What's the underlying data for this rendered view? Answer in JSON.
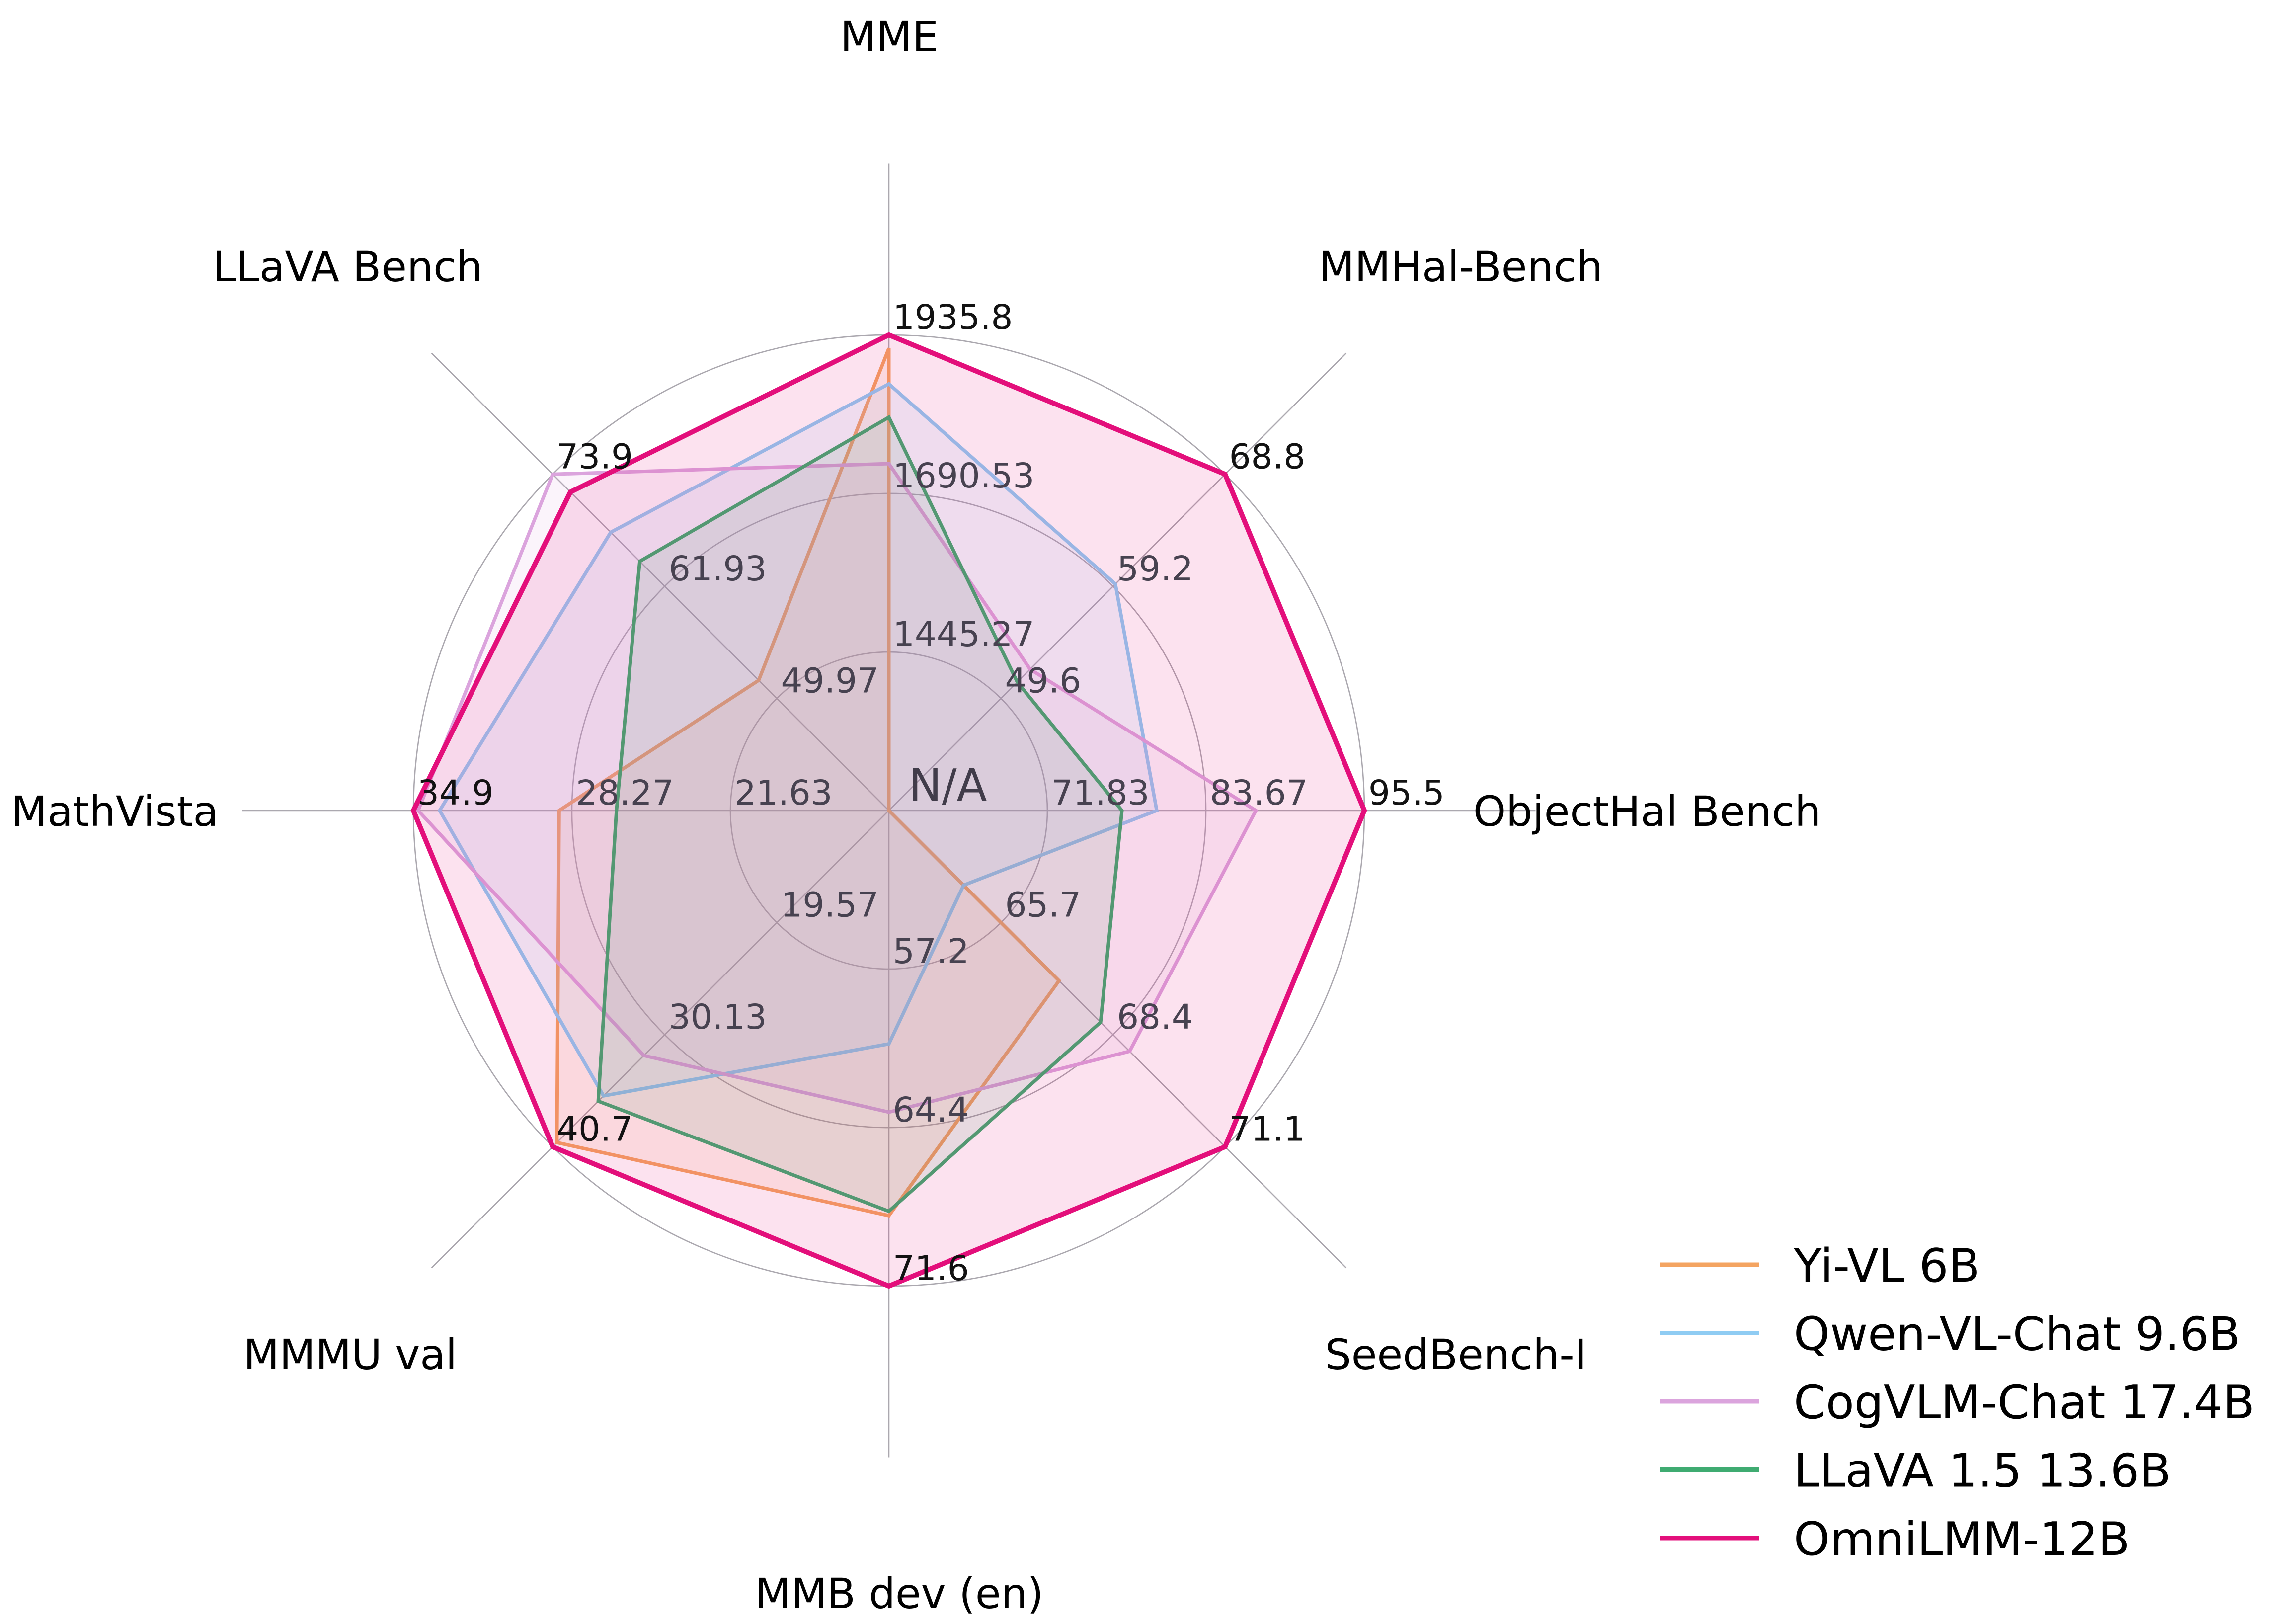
{
  "chart_data": {
    "type": "radar",
    "title": "",
    "center_label": "N/A",
    "background": "#ffffff",
    "grid": {
      "rings": 3,
      "ring_fractions": [
        0.3333,
        0.6667,
        1.0
      ],
      "color": "#ABA8AF",
      "show": true
    },
    "axes": [
      {
        "label": "MME",
        "angle_deg": 90,
        "min": 1200.0,
        "max": 1935.8,
        "ticks": [
          "1445.27",
          "1690.53",
          "1935.8"
        ]
      },
      {
        "label": "MMHal-Bench",
        "angle_deg": 45,
        "min": 40.0,
        "max": 68.8,
        "ticks": [
          "49.6",
          "59.2",
          "68.8"
        ]
      },
      {
        "label": "ObjectHal Bench",
        "angle_deg": 0,
        "min": 60.0,
        "max": 95.5,
        "ticks": [
          "71.83",
          "83.67",
          "95.5"
        ]
      },
      {
        "label": "SeedBench-I",
        "angle_deg": -45,
        "min": 63.0,
        "max": 71.1,
        "ticks": [
          "65.7",
          "68.4",
          "71.1"
        ]
      },
      {
        "label": "MMB dev (en)",
        "angle_deg": -90,
        "min": 50.0,
        "max": 71.6,
        "ticks": [
          "57.2",
          "64.4",
          "71.6"
        ]
      },
      {
        "label": "MMMU val",
        "angle_deg": -135,
        "min": 9.0,
        "max": 40.7,
        "ticks": [
          "19.57",
          "30.13",
          "40.7"
        ]
      },
      {
        "label": "MathVista",
        "angle_deg": 180,
        "min": 15.0,
        "max": 34.9,
        "ticks": [
          "21.63",
          "28.27",
          "34.9"
        ]
      },
      {
        "label": "LLaVA Bench",
        "angle_deg": 135,
        "min": 38.0,
        "max": 73.9,
        "ticks": [
          "49.97",
          "61.93",
          "73.9"
        ]
      }
    ],
    "series": [
      {
        "name": "Yi-VL 6B",
        "color": "#F4A461",
        "line_width": 7,
        "values": [
          1915.1,
          null,
          null,
          67.1,
          68.4,
          40.3,
          28.8,
          51.9
        ]
      },
      {
        "name": "Qwen-VL-Chat 9.6B",
        "color": "#8FCCF3",
        "line_width": 7,
        "values": [
          1860.0,
          59.4,
          80.0,
          64.8,
          60.6,
          35.9,
          33.8,
          67.7
        ]
      },
      {
        "name": "CogVLM-Chat 17.4B",
        "color": "#DBA4DD",
        "line_width": 7,
        "values": [
          1736.6,
          52.1,
          87.4,
          68.8,
          63.7,
          32.1,
          34.7,
          73.9
        ]
      },
      {
        "name": "LLaVA 1.5 13.6B",
        "color": "#3FAB71",
        "line_width": 7,
        "values": [
          1808.4,
          51.0,
          77.4,
          68.1,
          68.2,
          36.4,
          26.4,
          64.6
        ]
      },
      {
        "name": "OmniLMM-12B",
        "color": "#E30F7B",
        "line_width": 10,
        "values": [
          1935.8,
          68.8,
          95.5,
          71.1,
          71.6,
          40.7,
          34.9,
          72.0
        ]
      }
    ],
    "fill_opacity": 0.12,
    "na_policy": "null values are plotted at the chart center (N/A)",
    "legend_position": "lower right",
    "tick_label_colors": {
      "inner": "#474250",
      "outer": "#121212"
    }
  }
}
